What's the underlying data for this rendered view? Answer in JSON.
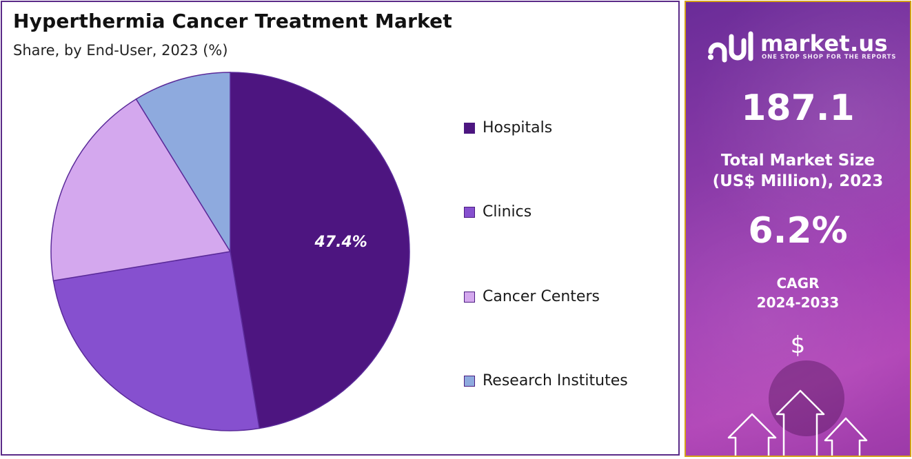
{
  "chart_data": {
    "type": "pie",
    "title": "Hyperthermia Cancer Treatment Market",
    "subtitle": "Share, by End-User, 2023 (%)",
    "categories": [
      "Hospitals",
      "Clinics",
      "Cancer Centers",
      "Research Institutes"
    ],
    "values": [
      47.4,
      25.0,
      18.8,
      8.8
    ],
    "colors": [
      "#4d1580",
      "#8650cf",
      "#d4a8ee",
      "#8eaade"
    ],
    "data_labels": [
      "47.4%",
      "",
      "",
      ""
    ],
    "legend_position": "right"
  },
  "sidebar": {
    "logo_text": "market.us",
    "logo_tagline": "ONE STOP SHOP FOR THE REPORTS",
    "market_size_value": "187.1",
    "market_size_label_line1": "Total Market Size",
    "market_size_label_line2": "(US$ Million), 2023",
    "cagr_value": "6.2%",
    "cagr_label": "CAGR",
    "cagr_period": "2024-2033",
    "currency_symbol": "$",
    "icons": [
      "dollar-icon",
      "growth-arrows-icon"
    ]
  }
}
